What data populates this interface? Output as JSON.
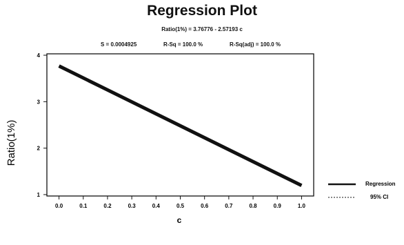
{
  "chart_data": {
    "type": "line",
    "title": "Regression Plot",
    "equation": "Ratio(1%) = 3.76776 - 2.57193 c",
    "stats": {
      "s": "S = 0.0004925",
      "r_sq": "R-Sq = 100.0 %",
      "r_sq_adj": "R-Sq(adj) = 100.0 %"
    },
    "xlabel": "c",
    "ylabel": "Ratio(1%)",
    "xlim": [
      -0.05,
      1.05
    ],
    "ylim": [
      0.97,
      4.03
    ],
    "x_ticks": [
      0.0,
      0.1,
      0.2,
      0.3,
      0.4,
      0.5,
      0.6,
      0.7,
      0.8,
      0.9,
      1.0
    ],
    "x_tick_labels": [
      "0.0",
      "0.1",
      "0.2",
      "0.3",
      "0.4",
      "0.5",
      "0.6",
      "0.7",
      "0.8",
      "0.9",
      "1.0"
    ],
    "y_ticks": [
      1,
      2,
      3,
      4
    ],
    "y_tick_labels": [
      "1",
      "2",
      "3",
      "4"
    ],
    "series": [
      {
        "name": "Regression",
        "x": [
          0.0,
          1.0
        ],
        "y": [
          3.76776,
          1.19583
        ],
        "style": "solid"
      },
      {
        "name": "95% CI",
        "x": [
          0.0,
          1.0
        ],
        "y": [
          3.76776,
          1.19583
        ],
        "style": "dashed"
      }
    ],
    "legend_position": "right",
    "grid": false
  }
}
